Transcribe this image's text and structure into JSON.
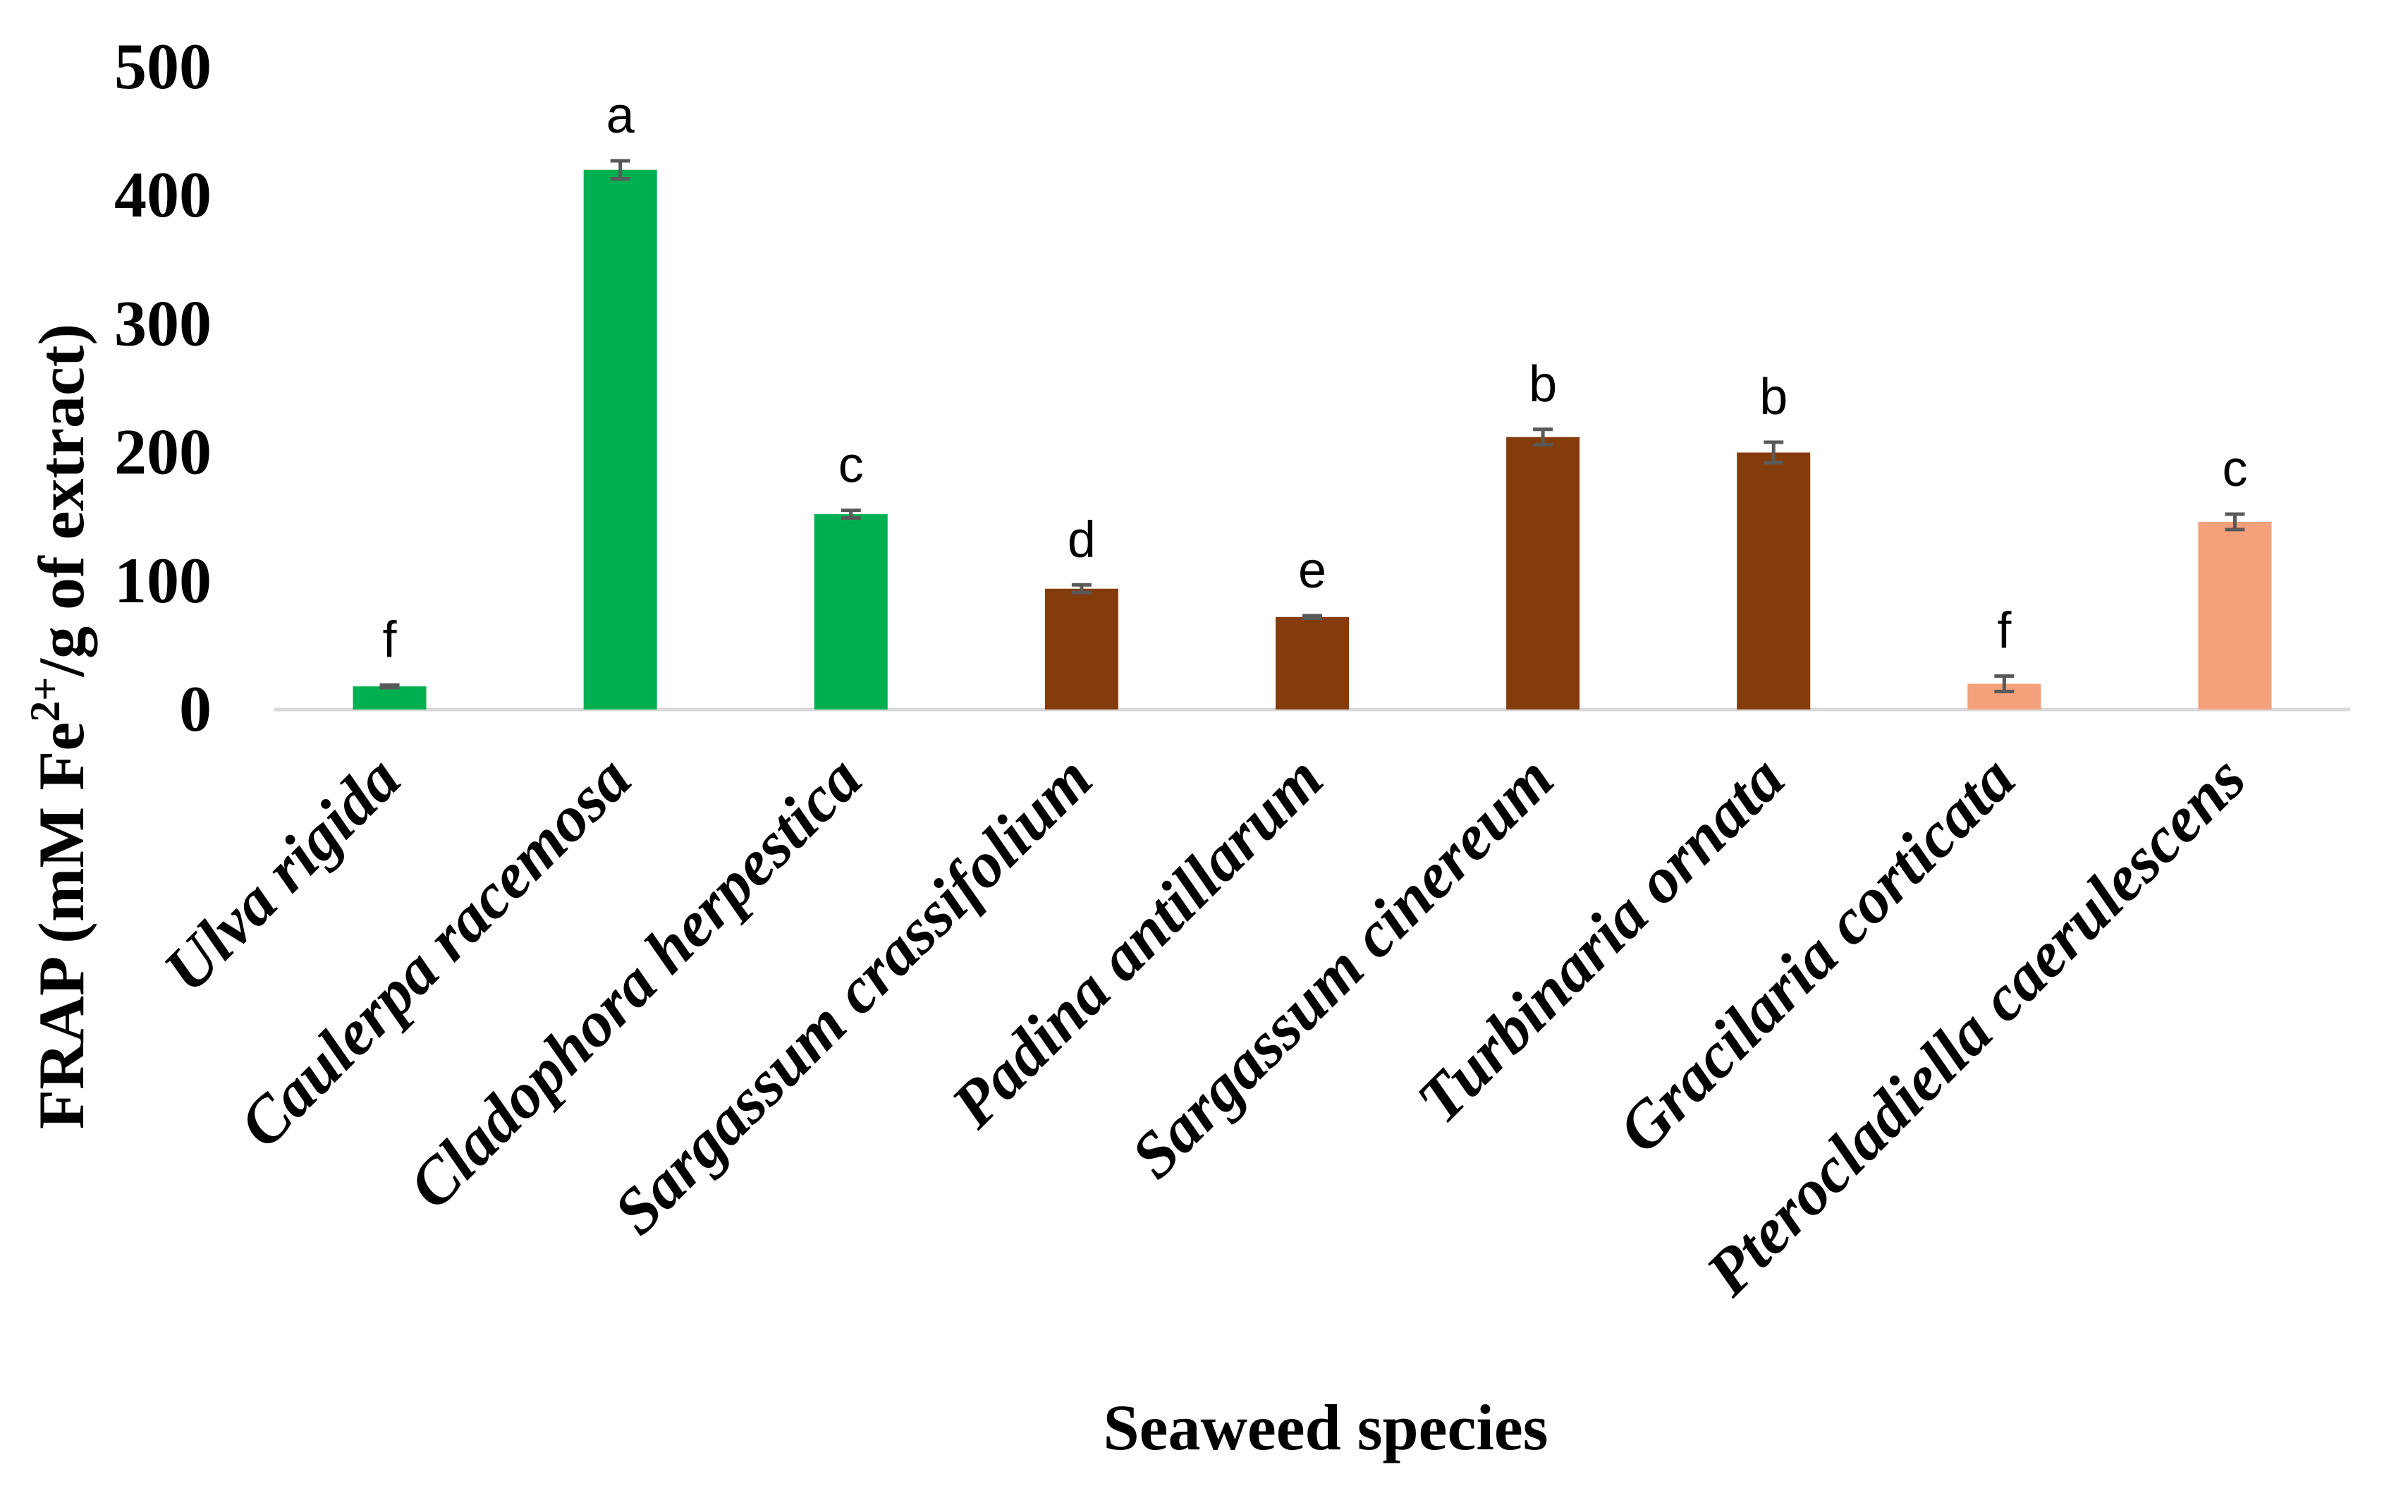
{
  "chart_data": {
    "type": "bar",
    "title": "",
    "xlabel": "Seaweed species",
    "ylabel_main": "FRAP (mM Fe",
    "ylabel_sup": "2+",
    "ylabel_tail": "/g of extract)",
    "ylim": [
      0,
      500
    ],
    "yticks": [
      "0",
      "100",
      "200",
      "300",
      "400",
      "500"
    ],
    "grid": false,
    "legend": "none",
    "categories": [
      "Ulva rigida",
      "Caulerpa racemosa",
      "Cladophora herpestica",
      "Sargassum crassifolium",
      "Padina antillarum",
      "Sargassum cinereum",
      "Turbinaria ornata",
      "Gracilaria corticata",
      "Pterocladiella caerulescens"
    ],
    "values": [
      18,
      420,
      152,
      94,
      72,
      212,
      200,
      20,
      146
    ],
    "errors": [
      1,
      7,
      3,
      3,
      1,
      6,
      8,
      6,
      6
    ],
    "significance_letters": [
      "f",
      "a",
      "c",
      "d",
      "e",
      "b",
      "b",
      "f",
      "c"
    ],
    "group_colors": [
      "#00b050",
      "#00b050",
      "#00b050",
      "#843c0c",
      "#843c0c",
      "#843c0c",
      "#843c0c",
      "#f4a07a",
      "#f4a07a"
    ],
    "axis_line_color": "#d9d9d9",
    "error_bar_color": "#595959"
  }
}
